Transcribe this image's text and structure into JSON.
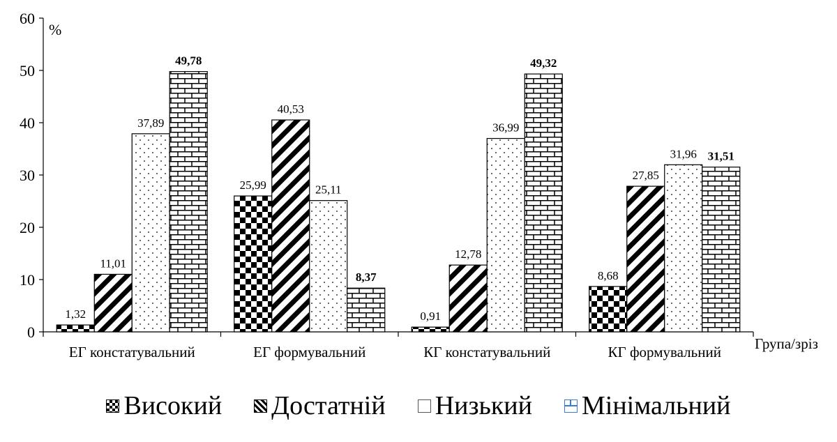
{
  "chart_data": {
    "type": "bar",
    "unit_label": "%",
    "xlabel": "Група/зріз",
    "ylim": [
      0,
      60
    ],
    "yticks": [
      0,
      10,
      20,
      30,
      40,
      50,
      60
    ],
    "categories": [
      "ЕГ констатувальний",
      "ЕГ формувальний",
      "КГ констатувальний",
      "КГ формувальний"
    ],
    "series": [
      {
        "name": "Високий",
        "pattern": "checker",
        "values": [
          1.32,
          25.99,
          0.91,
          8.68
        ],
        "labels": [
          "1,32",
          "25,99",
          "0,91",
          "8,68"
        ]
      },
      {
        "name": "Достатній",
        "pattern": "diagonal",
        "values": [
          11.01,
          40.53,
          12.78,
          27.85
        ],
        "labels": [
          "11,01",
          "40,53",
          "12,78",
          "27,85"
        ]
      },
      {
        "name": "Низький",
        "pattern": "dots",
        "values": [
          37.89,
          25.11,
          36.99,
          31.96
        ],
        "labels": [
          "37,89",
          "25,11",
          "36,99",
          "31,96"
        ]
      },
      {
        "name": "Мінімальний",
        "pattern": "brick",
        "values": [
          49.78,
          8.37,
          49.32,
          31.51
        ],
        "labels": [
          "49,78",
          "8,37",
          "49,32",
          "31,51"
        ]
      }
    ],
    "legend_position": "bottom",
    "grid": false,
    "colors": {
      "ink": "#000000",
      "background": "#ffffff",
      "legend_accent": "#3a7bd5"
    }
  }
}
